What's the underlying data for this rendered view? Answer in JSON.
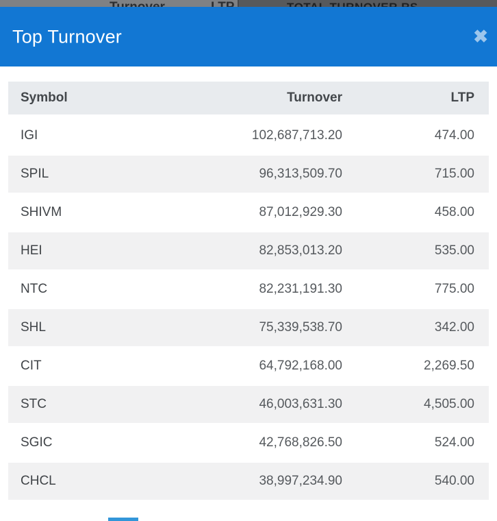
{
  "backdrop": {
    "turnover_header": "Turnover",
    "ltp_header": "LTP",
    "total_turnover_label": "TOTAL TURNOVER RS"
  },
  "modal": {
    "title": "Top Turnover",
    "close_icon": "✖"
  },
  "table": {
    "columns": {
      "symbol": "Symbol",
      "turnover": "Turnover",
      "ltp": "LTP"
    },
    "rows": [
      {
        "symbol": "IGI",
        "turnover": "102,687,713.20",
        "ltp": "474.00"
      },
      {
        "symbol": "SPIL",
        "turnover": "96,313,509.70",
        "ltp": "715.00"
      },
      {
        "symbol": "SHIVM",
        "turnover": "87,012,929.30",
        "ltp": "458.00"
      },
      {
        "symbol": "HEI",
        "turnover": "82,853,013.20",
        "ltp": "535.00"
      },
      {
        "symbol": "NTC",
        "turnover": "82,231,191.30",
        "ltp": "775.00"
      },
      {
        "symbol": "SHL",
        "turnover": "75,339,538.70",
        "ltp": "342.00"
      },
      {
        "symbol": "CIT",
        "turnover": "64,792,168.00",
        "ltp": "2,269.50"
      },
      {
        "symbol": "STC",
        "turnover": "46,003,631.30",
        "ltp": "4,505.00"
      },
      {
        "symbol": "SGIC",
        "turnover": "42,768,826.50",
        "ltp": "524.00"
      },
      {
        "symbol": "CHCL",
        "turnover": "38,997,234.90",
        "ltp": "540.00"
      }
    ]
  },
  "colors": {
    "header_blue": "#1277d3",
    "close_icon_blue": "#9dc6ec",
    "table_header_bg": "#e8ebee",
    "row_alt_bg": "#f1f1f2",
    "accent_bar_blue": "#3296d9",
    "backdrop_gray": "#7f8184",
    "backdrop_dark_gray": "#57595c"
  }
}
